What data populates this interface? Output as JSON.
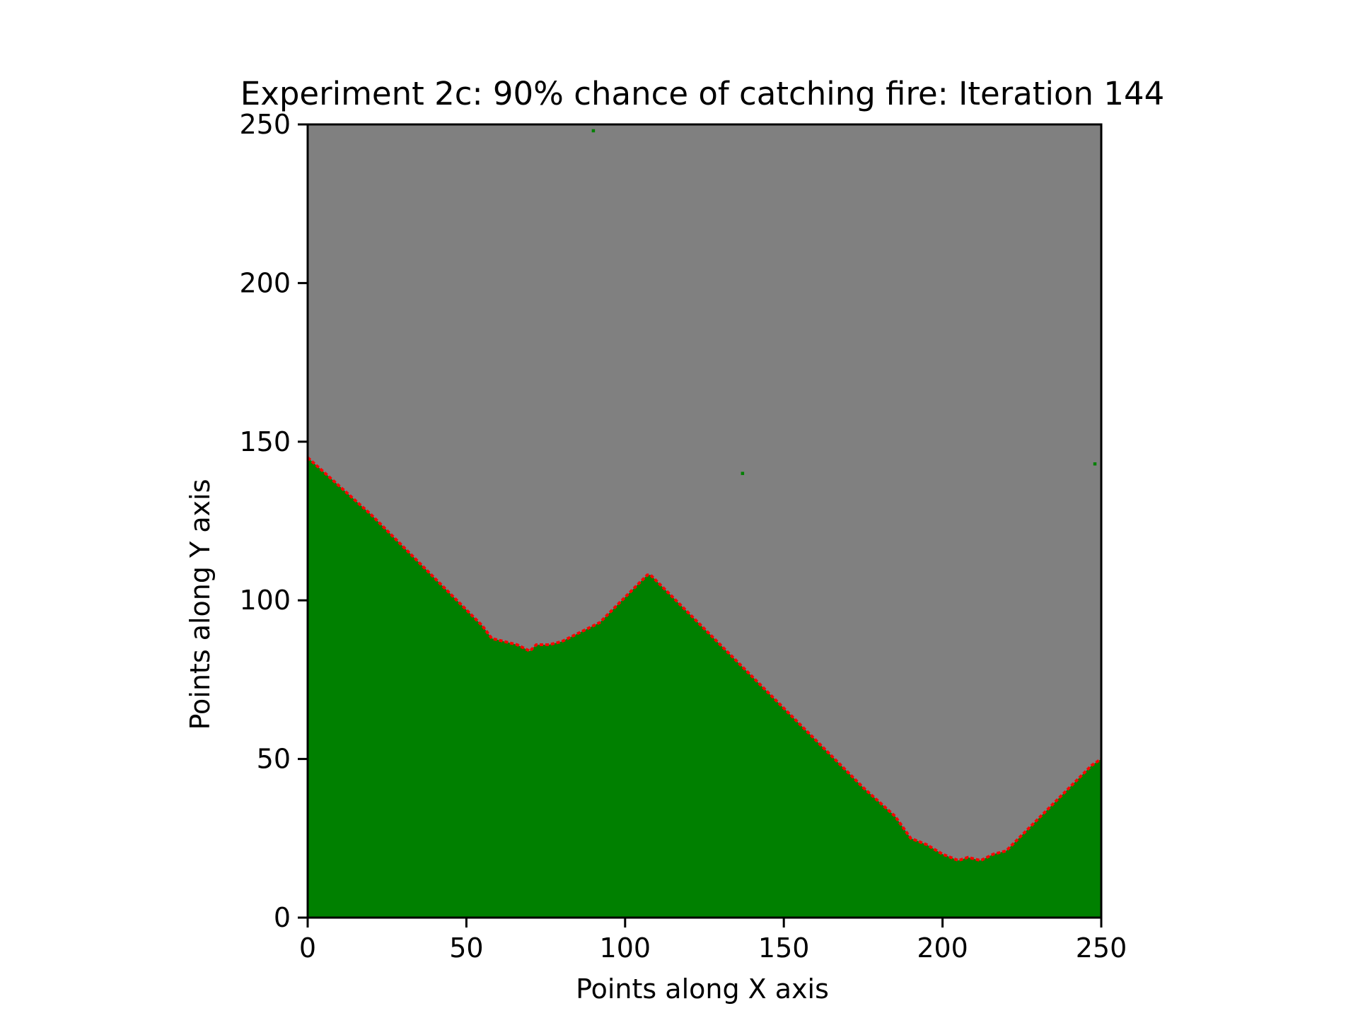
{
  "chart_data": {
    "type": "heatmap",
    "title": "Experiment 2c: 90% chance of catching fire: Iteration 144",
    "xlabel": "Points along X axis",
    "ylabel": "Points along Y axis",
    "xlim": [
      0,
      250
    ],
    "ylim": [
      0,
      250
    ],
    "xticks": [
      "0",
      "50",
      "100",
      "150",
      "200",
      "250"
    ],
    "yticks": [
      "0",
      "50",
      "100",
      "150",
      "200",
      "250"
    ],
    "grid": false,
    "colors": {
      "burnt": "#808080",
      "tree": "#008000",
      "fire": "#ff0000"
    },
    "boundary": {
      "x": [
        0,
        10,
        20,
        30,
        40,
        50,
        55,
        58,
        62,
        66,
        70,
        72,
        76,
        80,
        84,
        88,
        92,
        100,
        107,
        108,
        115,
        125,
        135,
        145,
        155,
        165,
        175,
        185,
        190,
        195,
        200,
        205,
        208,
        212,
        216,
        220,
        230,
        240,
        247,
        250
      ],
      "y": [
        145,
        136,
        127,
        117,
        107,
        97,
        92,
        88,
        87,
        86,
        84,
        86,
        86,
        87,
        89,
        91,
        93,
        101,
        108,
        108,
        101,
        91,
        81,
        71,
        61,
        51,
        41,
        32,
        25,
        23,
        20,
        18,
        19,
        18,
        20,
        21,
        31,
        41,
        48,
        50
      ]
    },
    "isolated_trees": [
      {
        "x": 90,
        "y": 248
      },
      {
        "x": 137,
        "y": 140
      },
      {
        "x": 248,
        "y": 143
      }
    ]
  }
}
